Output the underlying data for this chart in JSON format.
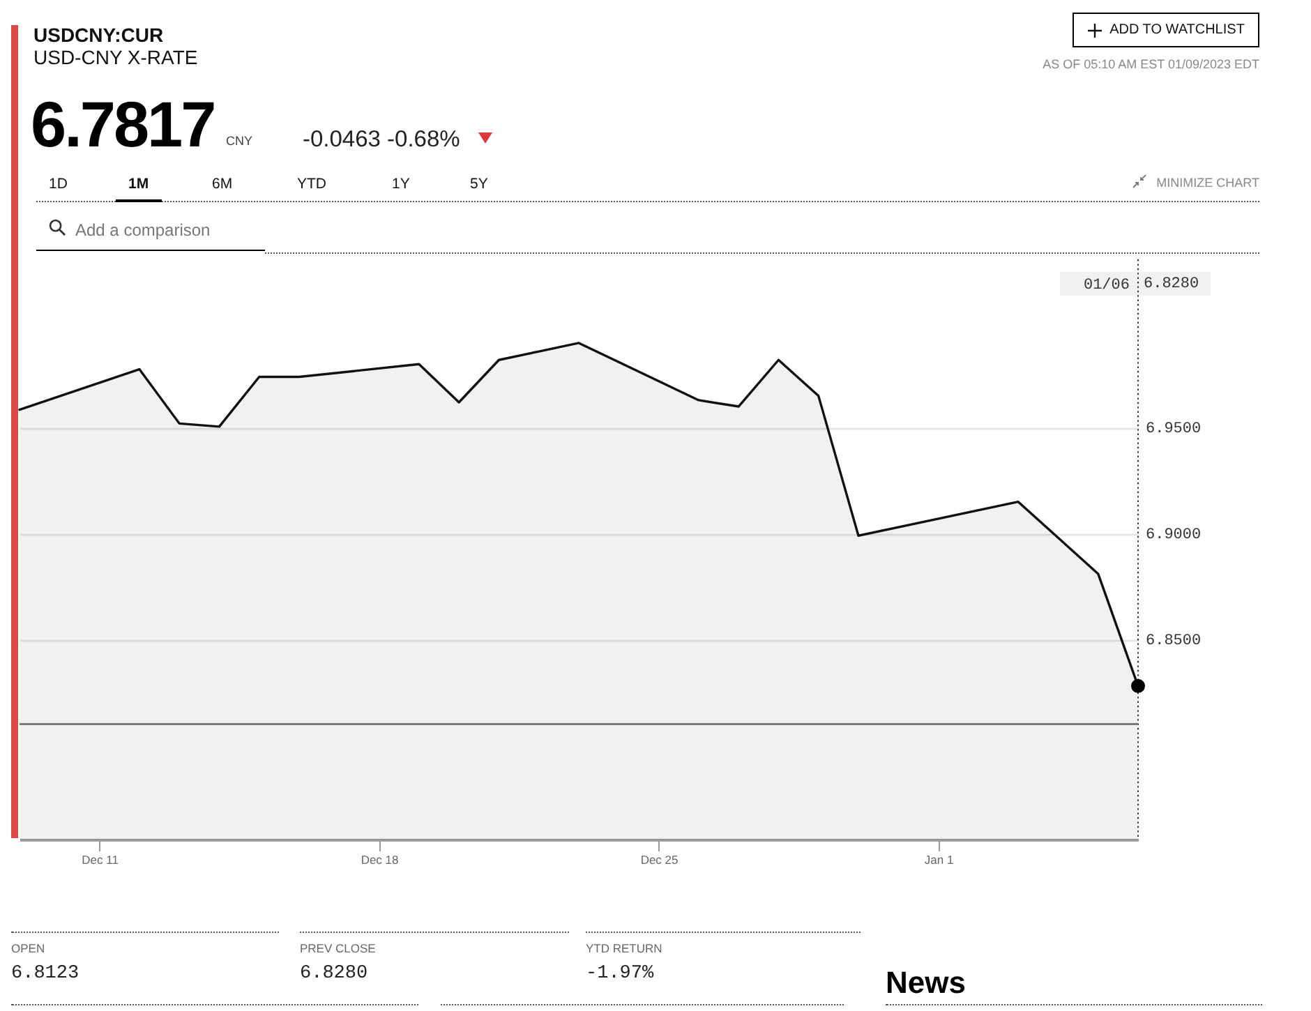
{
  "chart_data": {
    "type": "area",
    "title": "USDCNY:CUR",
    "subtitle": "USD-CNY X-RATE",
    "x": [
      "2022-12-09",
      "2022-12-12",
      "2022-12-13",
      "2022-12-14",
      "2022-12-15",
      "2022-12-16",
      "2022-12-19",
      "2022-12-20",
      "2022-12-21",
      "2022-12-22",
      "2022-12-23",
      "2022-12-26",
      "2022-12-27",
      "2022-12-28",
      "2022-12-29",
      "2022-12-30",
      "2023-01-03",
      "2023-01-05",
      "2023-01-06"
    ],
    "series": [
      {
        "type": "area",
        "color": "#111111",
        "values": [
          6.9585,
          6.9776,
          6.952,
          6.9505,
          6.974,
          6.974,
          6.98,
          6.962,
          6.982,
          6.986,
          6.99,
          6.963,
          6.96,
          6.982,
          6.965,
          6.899,
          6.915,
          6.881,
          6.828
        ]
      },
      {
        "type": "scatter",
        "color": "#000000",
        "marker": "circle",
        "x": [
          "2023-01-06"
        ],
        "values": [
          6.828
        ]
      }
    ],
    "xlim": [
      "2022-12-09",
      "2023-01-06"
    ],
    "xticks": [
      {
        "value": "2022-12-11",
        "label": "Dec 11"
      },
      {
        "value": "2022-12-18",
        "label": "Dec 18"
      },
      {
        "value": "2022-12-25",
        "label": "Dec 25"
      },
      {
        "value": "2023-01-01",
        "label": "Jan 1"
      }
    ],
    "ylim": [
      6.7555,
      7.0295
    ],
    "yticks": [
      {
        "value": 6.85,
        "label": "6.8500"
      },
      {
        "value": 6.9,
        "label": "6.9000"
      },
      {
        "value": 6.95,
        "label": "6.9500"
      }
    ],
    "grid": "y",
    "ref_lines": [
      {
        "axis": "x",
        "value": "2023-01-06",
        "label": "01/06",
        "line_style": "dotted",
        "color": "#333333"
      },
      {
        "axis": "y",
        "value": 6.81,
        "color": "#7a7a7a"
      }
    ],
    "annotations": [
      "6.8280",
      "6.7817",
      "CNY",
      "-0.0463 -0.68%",
      "ADD TO WATCHLIST",
      "AS OF 05:10 AM EST 01/09/2023 EDT",
      "1D",
      "1M",
      "6M",
      "YTD",
      "1Y",
      "5Y",
      "MINIMIZE CHART",
      "Add a comparison",
      "OPEN",
      "6.8123",
      "PREV CLOSE",
      "6.8280",
      "YTD RETURN",
      "-1.97%",
      "News"
    ]
  }
}
